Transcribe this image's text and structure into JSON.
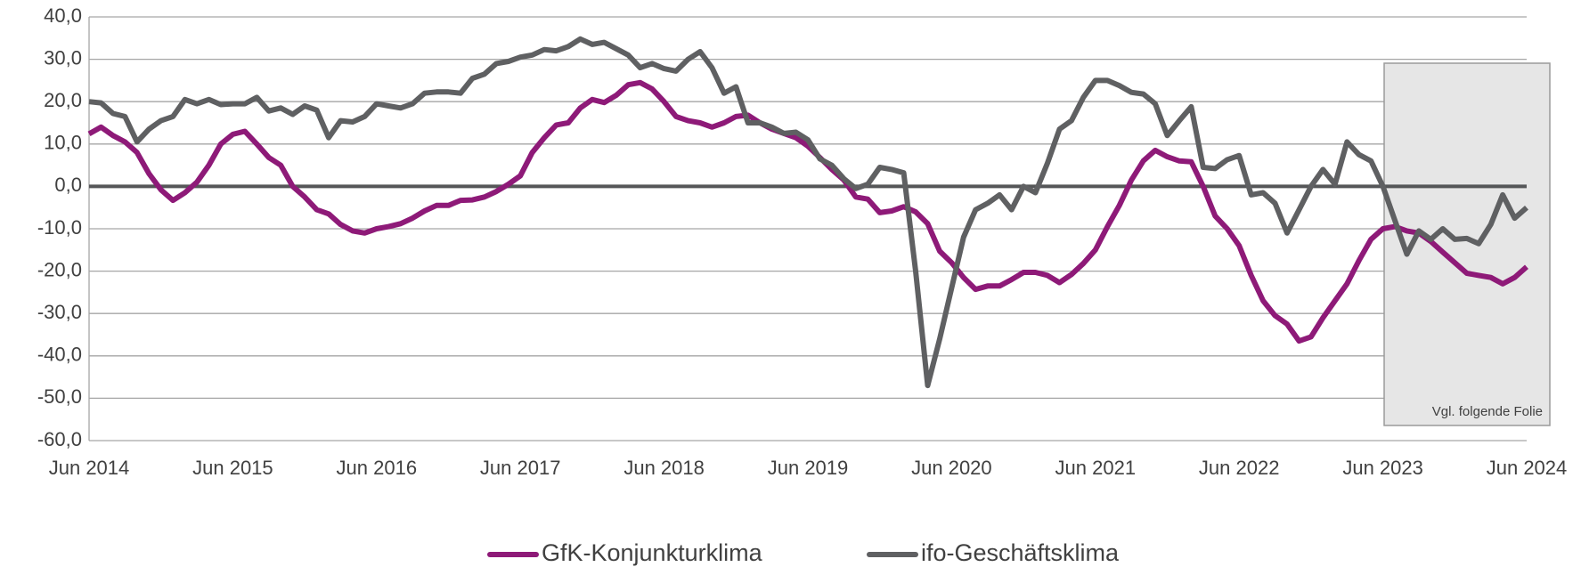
{
  "chart_data": {
    "type": "line",
    "categories": [
      "Jun 2014",
      null,
      null,
      null,
      null,
      null,
      null,
      null,
      null,
      null,
      null,
      null,
      "Jun 2015",
      null,
      null,
      null,
      null,
      null,
      null,
      null,
      null,
      null,
      null,
      null,
      "Jun 2016",
      null,
      null,
      null,
      null,
      null,
      null,
      null,
      null,
      null,
      null,
      null,
      "Jun 2017",
      null,
      null,
      null,
      null,
      null,
      null,
      null,
      null,
      null,
      null,
      null,
      "Jun 2018",
      null,
      null,
      null,
      null,
      null,
      null,
      null,
      null,
      null,
      null,
      null,
      "Jun 2019",
      null,
      null,
      null,
      null,
      null,
      null,
      null,
      null,
      null,
      null,
      null,
      "Jun 2020",
      null,
      null,
      null,
      null,
      null,
      null,
      null,
      null,
      null,
      null,
      null,
      "Jun 2021",
      null,
      null,
      null,
      null,
      null,
      null,
      null,
      null,
      null,
      null,
      null,
      "Jun 2022",
      null,
      null,
      null,
      null,
      null,
      null,
      null,
      null,
      null,
      null,
      null,
      "Jun 2023",
      null,
      null,
      null,
      null,
      null,
      null,
      null,
      null,
      null,
      null,
      null,
      "Jun 2024"
    ],
    "series": [
      {
        "name": "GfK-Konjunkturklima",
        "color": "#8e1a78",
        "values": [
          12.4,
          14,
          12,
          10.5,
          8,
          3,
          -0.8,
          -3.3,
          -1.5,
          1,
          5,
          10,
          12.3,
          13,
          10,
          6.8,
          5,
          0,
          -2.5,
          -5.5,
          -6.5,
          -9,
          -10.5,
          -11,
          -10,
          -9.5,
          -8.8,
          -7.5,
          -5.8,
          -4.5,
          -4.5,
          -3.3,
          -3.2,
          -2.5,
          -1.2,
          0.5,
          2.5,
          8,
          11.5,
          14.5,
          15,
          18.5,
          20.5,
          19.8,
          21.5,
          24,
          24.5,
          23,
          20,
          16.5,
          15.5,
          15,
          14,
          15,
          16.5,
          16.8,
          15,
          13.5,
          12.5,
          11.5,
          9.5,
          6.8,
          4,
          1.5,
          -2.5,
          -3,
          -6.2,
          -5.8,
          -4.8,
          -6,
          -8.8,
          -15.3,
          -18,
          -21.5,
          -24.3,
          -23.5,
          -23.5,
          -22,
          -20.3,
          -20.3,
          -21,
          -22.7,
          -20.8,
          -18.2,
          -15,
          -9.5,
          -4.5,
          1.5,
          6,
          8.5,
          7,
          6,
          5.8,
          0,
          -7,
          -10,
          -14,
          -21,
          -27,
          -30.5,
          -32.5,
          -36.5,
          -35.5,
          -31,
          -27,
          -23,
          -17.5,
          -12.5,
          -10,
          -9.5,
          -10.5,
          -11,
          -13,
          -15.5,
          -18,
          -20.5,
          -21,
          -21.5,
          -23,
          -21.5,
          -19
        ]
      },
      {
        "name": "ifo-Geschäftsklima",
        "color": "#5f6062",
        "values": [
          20,
          19.7,
          17.2,
          16.5,
          10.5,
          13.5,
          15.5,
          16.5,
          20.5,
          19.5,
          20.5,
          19.3,
          19.5,
          19.5,
          21,
          17.8,
          18.5,
          17,
          19,
          18,
          11.5,
          15.5,
          15.2,
          16.5,
          19.5,
          19,
          18.5,
          19.5,
          22,
          22.3,
          22.3,
          22,
          25.5,
          26.5,
          29,
          29.5,
          30.5,
          31,
          32.3,
          32,
          33,
          34.8,
          33.5,
          34,
          32.5,
          31,
          28,
          29,
          27.8,
          27.2,
          30,
          31.8,
          28,
          22,
          23.5,
          15,
          15,
          14,
          12.5,
          12.8,
          11,
          6.5,
          5,
          1.8,
          -0.5,
          0.5,
          4.5,
          4,
          3.2,
          -20,
          -47,
          -36,
          -24,
          -12,
          -5.5,
          -4,
          -2,
          -5.5,
          0,
          -1.5,
          5.5,
          13.5,
          15.5,
          21,
          25,
          25,
          23.8,
          22.2,
          21.8,
          19.5,
          12,
          15.5,
          18.8,
          4.5,
          4.2,
          6.3,
          7.3,
          -2,
          -1.5,
          -4,
          -11,
          -5.5,
          0,
          4,
          0.5,
          10.5,
          7.5,
          6,
          0,
          -8,
          -16,
          -10.5,
          -12.5,
          -10,
          -12.5,
          -12.3,
          -13.5,
          -9,
          -2,
          -7.5,
          -5
        ]
      }
    ],
    "ylim": [
      -60,
      40
    ],
    "yticks": [
      {
        "value": -60,
        "label": "-60,0"
      },
      {
        "value": -50,
        "label": "-50,0"
      },
      {
        "value": -40,
        "label": "-40,0"
      },
      {
        "value": -30,
        "label": "-30,0"
      },
      {
        "value": -20,
        "label": "-20,0"
      },
      {
        "value": -10,
        "label": "-10,0"
      },
      {
        "value": 0,
        "label": "0,0"
      },
      {
        "value": 10,
        "label": "10,0"
      },
      {
        "value": 20,
        "label": "20,0"
      },
      {
        "value": 30,
        "label": "30,0"
      },
      {
        "value": 40,
        "label": "40,0"
      }
    ],
    "grid": true,
    "annotation": "Vgl. folgende Folie",
    "legend": "bottom"
  }
}
